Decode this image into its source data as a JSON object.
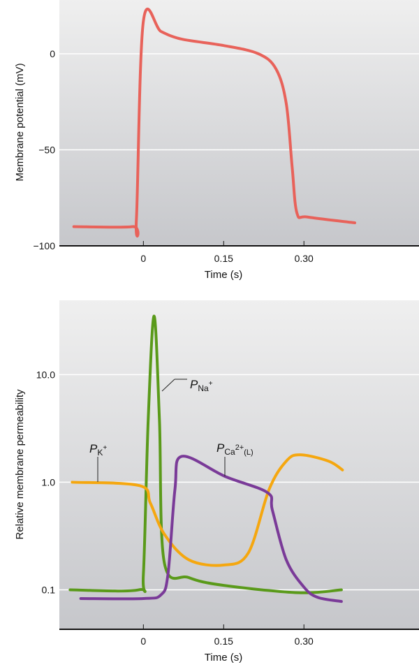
{
  "chart_data": [
    {
      "type": "line",
      "xlabel": "Time (s)",
      "ylabel": "Membrane potential (mV)",
      "xticks": [
        "0",
        "0.15",
        "0.30"
      ],
      "xtick_values": [
        0,
        0.15,
        0.3
      ],
      "yticks": [
        "0",
        "−50",
        "−100"
      ],
      "ytick_values": [
        0,
        -50,
        -100
      ],
      "xlim": [
        -0.157,
        0.515
      ],
      "ylim": [
        -100,
        28
      ],
      "grid": true,
      "series": [
        {
          "color": "#e8625a",
          "x": [
            -0.13,
            -0.02,
            -0.013,
            0,
            0.033,
            0.072,
            0.15,
            0.215,
            0.248,
            0.267,
            0.278,
            0.287,
            0.307,
            0.395
          ],
          "y": [
            -90,
            -90,
            -86,
            17,
            11.6,
            7.6,
            4.3,
            0,
            -8,
            -26,
            -59,
            -83,
            -85,
            -88
          ]
        }
      ]
    },
    {
      "type": "line",
      "xlabel": "Time (s)",
      "ylabel": "Relative membrane permeability",
      "yscale": "log",
      "xticks": [
        "0",
        "0.15",
        "0.30"
      ],
      "xtick_values": [
        0,
        0.15,
        0.3
      ],
      "yticks": [
        "10.0",
        "1.0",
        "0.1"
      ],
      "ytick_values": [
        10,
        1,
        0.1
      ],
      "xlim": [
        -0.157,
        0.515
      ],
      "ylim": [
        0.043,
        49
      ],
      "grid": true,
      "series": [
        {
          "name": "P",
          "sub": "Na",
          "sup": "+",
          "color": "#5a9a1a",
          "x": [
            -0.137,
            -0.009,
            0,
            0.009,
            0.02,
            0.03,
            0.039,
            0.085,
            0.15,
            0.29,
            0.37
          ],
          "y": [
            0.1,
            0.1,
            0.14,
            3.8,
            35,
            3.8,
            0.18,
            0.13,
            0.11,
            0.094,
            0.1
          ]
        },
        {
          "name": "P",
          "sub": "K",
          "sup": "+",
          "color": "#f5a70f",
          "x": [
            -0.133,
            -0.007,
            0.013,
            0.039,
            0.085,
            0.15,
            0.196,
            0.235,
            0.267,
            0.293,
            0.346,
            0.372
          ],
          "y": [
            1.0,
            0.93,
            0.64,
            0.33,
            0.19,
            0.17,
            0.22,
            0.86,
            1.57,
            1.8,
            1.57,
            1.3
          ]
        },
        {
          "name": "P",
          "sub": "Ca",
          "sup": "2+",
          "sub2": "(L)",
          "color": "#7a3a98",
          "x": [
            -0.117,
            0,
            0.033,
            0.046,
            0.059,
            0.072,
            0.153,
            0.232,
            0.241,
            0.267,
            0.3,
            0.326,
            0.37
          ],
          "y": [
            0.083,
            0.083,
            0.09,
            0.14,
            0.86,
            1.74,
            1.13,
            0.8,
            0.55,
            0.19,
            0.106,
            0.085,
            0.078
          ]
        }
      ]
    }
  ]
}
